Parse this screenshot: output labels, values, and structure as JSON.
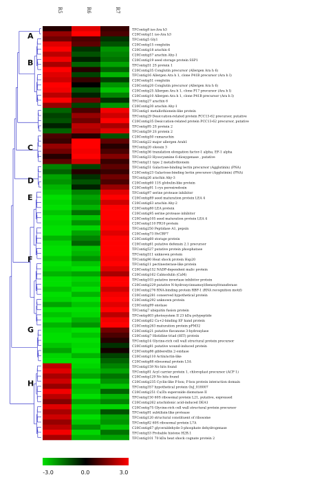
{
  "chart_data": {
    "type": "heatmap",
    "columns": [
      "R5",
      "R6",
      "R7"
    ],
    "groups": [
      "A",
      "B",
      "C",
      "D",
      "E",
      "F",
      "G",
      "H"
    ],
    "colorbar": {
      "min": -3.0,
      "mid": 0.0,
      "max": 3.0,
      "tick_labels": [
        "-3.0",
        "0.0",
        "3.0"
      ],
      "low_color": "#00e000",
      "mid_color": "#000000",
      "high_color": "#ff0000"
    },
    "rows": [
      {
        "label": "TFContig8 iso-Ara h3",
        "v": [
          0.2,
          1.2,
          0.3
        ]
      },
      {
        "label": "C20Contig11 iso-Ara h3",
        "v": [
          0.8,
          1.5,
          0.4
        ]
      },
      {
        "label": "TFContig5 Gly1",
        "v": [
          0.6,
          0.4,
          -0.3
        ]
      },
      {
        "label": "C20Contig15 conglutin",
        "v": [
          1.2,
          0.5,
          -0.5
        ]
      },
      {
        "label": "C20Contig18 arachin 6",
        "v": [
          1.4,
          -0.3,
          -0.9
        ]
      },
      {
        "label": "C20Contig57 arachin Ahy-1",
        "v": [
          1.0,
          -0.5,
          -0.8
        ]
      },
      {
        "label": "C20Contig19 seed storage protein SSP1",
        "v": [
          1.3,
          -0.2,
          -0.7
        ]
      },
      {
        "label": "TFContig51 2S protein 1",
        "v": [
          0.9,
          -0.6,
          -1.0
        ]
      },
      {
        "label": "C20Contig35 Conglutin precursor (Allergen Ara h 6)",
        "v": [
          1.5,
          0.2,
          -0.6
        ]
      },
      {
        "label": "TFContig16 Allergen Ara h 1, clone P41B precursor (Ara h I)",
        "v": [
          1.2,
          -0.4,
          -1.1
        ]
      },
      {
        "label": "C20Contig51 conglutin",
        "v": [
          1.1,
          0.3,
          -0.4
        ]
      },
      {
        "label": "C20Contig20 Conglutin precursor (Allergen Ara h 6)",
        "v": [
          1.6,
          0.0,
          -0.9
        ]
      },
      {
        "label": "C20Contig25 Allergen Ara h 1, clone P17 precursor (Ara h I)",
        "v": [
          1.3,
          -0.5,
          -1.2
        ]
      },
      {
        "label": "C20Contig10 Allergen Ara h 1, clone P41B precursor (Ara h I)",
        "v": [
          1.0,
          -0.2,
          -0.8
        ]
      },
      {
        "label": "TFContig27 arachin 6",
        "v": [
          1.4,
          0.6,
          -0.3
        ]
      },
      {
        "label": "C20Contig30 arachin Ahy-1",
        "v": [
          0.8,
          -0.4,
          -0.9
        ]
      },
      {
        "label": "TFContig1 metallothionein-like protein",
        "v": [
          -0.6,
          0.4,
          1.3
        ]
      },
      {
        "label": "TFContig29 Desiccation-related protein PCC13-62 precursor, putative",
        "v": [
          -0.4,
          0.8,
          1.1
        ]
      },
      {
        "label": "C20Contig35 Desiccation-related protein PCC13-62 precursor, putative",
        "v": [
          -0.5,
          0.6,
          1.4
        ]
      },
      {
        "label": "TFContig95 2S protein 2",
        "v": [
          -0.2,
          1.0,
          0.9
        ]
      },
      {
        "label": "TFContig59 2S protein 2",
        "v": [
          -0.6,
          0.9,
          1.2
        ]
      },
      {
        "label": "C20Contig50 cumarachin",
        "v": [
          0.4,
          0.2,
          -0.5
        ]
      },
      {
        "label": "TFContig22 major allergen Arah1",
        "v": [
          0.3,
          1.4,
          0.5
        ]
      },
      {
        "label": "TFContig20 oleosin 3",
        "v": [
          0.8,
          1.6,
          0.2
        ]
      },
      {
        "label": "TFContig36 translation elongation factor-1 alpha; EF-1 alpha",
        "v": [
          0.6,
          1.3,
          0.4
        ]
      },
      {
        "label": "TFContig33 Hyoscyamine 6-dioxygenase , putative",
        "v": [
          0.2,
          1.5,
          0.7
        ]
      },
      {
        "label": "TFContig11 type 2 metallothionein",
        "v": [
          0.5,
          1.1,
          0.3
        ]
      },
      {
        "label": "TFContig51 Galactose-binding lectin precursor (Agglutinin) (PNA)",
        "v": [
          -0.8,
          -0.4,
          0.5
        ]
      },
      {
        "label": "C20Contig23 Galactose-binding lectin precursor (Agglutinin) (PNA)",
        "v": [
          -0.6,
          0.2,
          0.3
        ]
      },
      {
        "label": "TFContig26 arachin Ahy-3",
        "v": [
          -1.0,
          -0.3,
          0.6
        ]
      },
      {
        "label": "C20Contig60 11S globulin-like protein",
        "v": [
          -0.9,
          -0.5,
          0.4
        ]
      },
      {
        "label": "C20Contig91 1-cys peroxiredoxin",
        "v": [
          -1.1,
          -0.2,
          0.8
        ]
      },
      {
        "label": "TFContig97 serine protease inhibitor",
        "v": [
          -1.2,
          -0.8,
          1.2
        ]
      },
      {
        "label": "C20Contig89 seed maturation protein LEA 4",
        "v": [
          -1.4,
          -1.0,
          1.5
        ]
      },
      {
        "label": "C20Contig63 arachin Ahy-2",
        "v": [
          -1.3,
          -0.9,
          1.1
        ]
      },
      {
        "label": "C20Contig80 LEA protein",
        "v": [
          -1.5,
          -1.1,
          1.6
        ]
      },
      {
        "label": "C20Contig95 serine protease inhibitor",
        "v": [
          -1.2,
          -0.7,
          1.4
        ]
      },
      {
        "label": "C20Contig105 seed maturation protein LEA 4",
        "v": [
          -1.6,
          -1.2,
          1.7
        ]
      },
      {
        "label": "C20Contig110 PR10 protein",
        "v": [
          -1.3,
          -0.9,
          1.3
        ]
      },
      {
        "label": "TFContig250 Peptidase A1, pepsin",
        "v": [
          -1.5,
          -1.3,
          1.5
        ]
      },
      {
        "label": "C20Contig73 HvCBF7",
        "v": [
          -1.4,
          -1.0,
          1.2
        ]
      },
      {
        "label": "C20Contig60 storage protein",
        "v": [
          -1.1,
          -0.8,
          1.4
        ]
      },
      {
        "label": "C20Contig61 putative defensin 2.1 precursor",
        "v": [
          -1.3,
          -0.6,
          1.5
        ]
      },
      {
        "label": "TFContig527 putative protein phosphatase",
        "v": [
          -1.5,
          -1.2,
          1.8
        ]
      },
      {
        "label": "TFContig511 unknown protein",
        "v": [
          -1.4,
          -1.1,
          1.6
        ]
      },
      {
        "label": "TFContig90 Heat shock protein Hsp20",
        "v": [
          -1.2,
          -0.9,
          1.3
        ]
      },
      {
        "label": "TFContig11 pectinesterase-like protein",
        "v": [
          -1.6,
          -1.2,
          1.5
        ]
      },
      {
        "label": "C20Contig152 NADP-dependent malic protein",
        "v": [
          -1.3,
          -1.4,
          1.2
        ]
      },
      {
        "label": "C20Contig162 Calmodulin (CaM)",
        "v": [
          -1.1,
          -1.0,
          0.9
        ]
      },
      {
        "label": "TFContig103 putative invertase inhibitor protein",
        "v": [
          -1.5,
          -1.3,
          1.4
        ]
      },
      {
        "label": "C20Contig229 putative N-hydroxycinnamoyl/benzoyltransferase",
        "v": [
          -1.4,
          -1.2,
          1.6
        ]
      },
      {
        "label": "C20Contig276 RNA-binding protein RBP-1 (RNA recognition motif)",
        "v": [
          -1.2,
          -1.5,
          1.1
        ]
      },
      {
        "label": "C20Contig281 conserved hypothetical protein",
        "v": [
          -1.6,
          -1.1,
          1.3
        ]
      },
      {
        "label": "C20Contig292 unknown protein",
        "v": [
          -1.3,
          -1.4,
          1.5
        ]
      },
      {
        "label": "C20Contig99 enolase",
        "v": [
          -1.0,
          -1.2,
          1.2
        ]
      },
      {
        "label": "TFContig7 ubiquitin fusion protein",
        "v": [
          -1.4,
          -1.6,
          1.4
        ]
      },
      {
        "label": "TFContig403 photosystem II 23 kDa polypeptide",
        "v": [
          -1.2,
          -1.3,
          1.0
        ]
      },
      {
        "label": "C20Contig62 Ca+2-binding EF hand protein",
        "v": [
          -1.5,
          -1.1,
          1.3
        ]
      },
      {
        "label": "C20Contig263 maturation protein pPM32",
        "v": [
          -1.1,
          -0.9,
          1.6
        ]
      },
      {
        "label": "C20Contig21 putative flavanone 3-hydroxylase",
        "v": [
          -1.3,
          -1.4,
          0.6
        ]
      },
      {
        "label": "C20Contig7 Histidine triad (HIT) protein",
        "v": [
          -1.6,
          -1.2,
          0.4
        ]
      },
      {
        "label": "TFContig14 Glycine-rich cell wall structural protein precursor",
        "v": [
          -1.4,
          -1.5,
          0.2
        ]
      },
      {
        "label": "C20Contig81 putative wound-induced protein",
        "v": [
          -1.2,
          -1.3,
          -0.3
        ]
      },
      {
        "label": "C20Contig86 gibberellin 2-oxidase",
        "v": [
          -1.0,
          -1.6,
          0.1
        ]
      },
      {
        "label": "C20Contig110 Actin/actin-like",
        "v": [
          -1.3,
          -1.1,
          -0.4
        ]
      },
      {
        "label": "C20Contig88 ribosomal protein L3A",
        "v": [
          -1.5,
          -1.4,
          -0.6
        ]
      },
      {
        "label": "TFContig159 No hits found",
        "v": [
          1.0,
          -1.3,
          -0.8
        ]
      },
      {
        "label": "TFContig81 Acyl carrier protein 1, chloroplast precursor (ACP 1)",
        "v": [
          1.2,
          -1.2,
          -1.0
        ]
      },
      {
        "label": "C20Contig129 No hits found",
        "v": [
          0.9,
          -1.0,
          -0.7
        ]
      },
      {
        "label": "C20Contig235 Cyclin-like F-box; F-box protein interaction domain",
        "v": [
          1.1,
          -1.4,
          -0.9
        ]
      },
      {
        "label": "TFContig357 hypothetical protein OsJ_018007",
        "v": [
          0.8,
          -1.1,
          -1.2
        ]
      },
      {
        "label": "C20Contig251 Cu/Zn superoxide dismutase II",
        "v": [
          1.3,
          -1.2,
          -0.6
        ]
      },
      {
        "label": "TFContig150 60S ribosomal protein L21, putative, expressed",
        "v": [
          1.0,
          -1.5,
          -1.1
        ]
      },
      {
        "label": "C20Contig262 arachidonic acid-induced DEA1",
        "v": [
          0.7,
          -1.0,
          -0.8
        ]
      },
      {
        "label": "C20Contig75 Glycine-rich cell wall structural protein precursor",
        "v": [
          1.2,
          -1.3,
          -1.3
        ]
      },
      {
        "label": "TFContig91 subtilisin-like protease",
        "v": [
          0.9,
          -1.1,
          -0.5
        ]
      },
      {
        "label": "TFContig120 structural constituent of ribosome",
        "v": [
          1.1,
          -1.4,
          -1.0
        ]
      },
      {
        "label": "TFContig82 60S ribosomal protein L7A",
        "v": [
          0.8,
          -1.2,
          -0.9
        ]
      },
      {
        "label": "C20Contig67 glyceraldehyde-3-phosphate dehydrogenase",
        "v": [
          1.0,
          -0.9,
          -1.2
        ]
      },
      {
        "label": "TFContig53 Probable histone H2B.1",
        "v": [
          1.3,
          -1.3,
          -0.7
        ]
      },
      {
        "label": "TFContig101 70 kDa heat shock cognate protein 2",
        "v": [
          0.9,
          -1.1,
          -1.0
        ]
      }
    ]
  }
}
